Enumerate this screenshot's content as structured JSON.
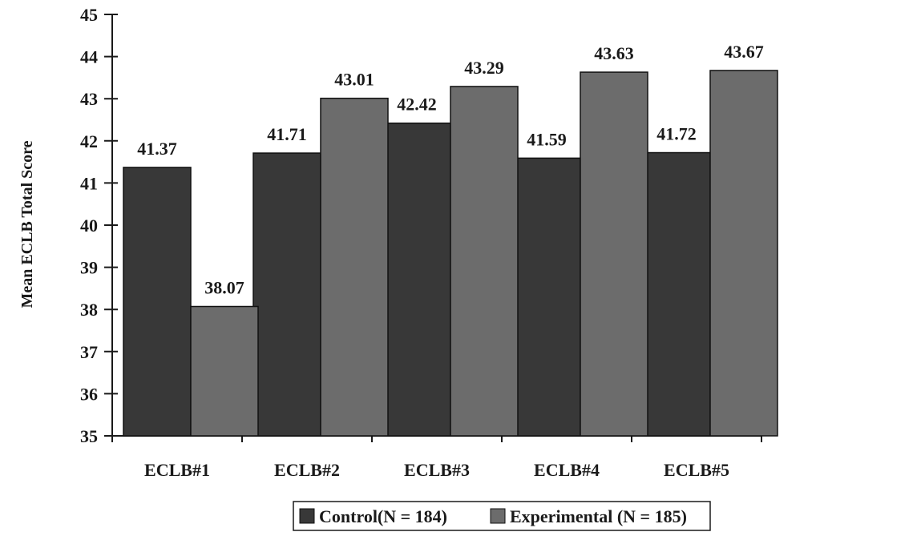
{
  "chart_data": {
    "type": "bar",
    "categories": [
      "ECLB#1",
      "ECLB#2",
      "ECLB#3",
      "ECLB#4",
      "ECLB#5"
    ],
    "series": [
      {
        "name": "Control(N = 184)",
        "values": [
          41.37,
          41.71,
          42.42,
          41.59,
          41.72
        ],
        "color": "#383838"
      },
      {
        "name": "Experimental (N = 185)",
        "values": [
          38.07,
          43.01,
          43.29,
          43.63,
          43.67
        ],
        "color": "#6c6c6c"
      }
    ],
    "data_labels": [
      [
        "41.37",
        "41.71",
        "42.42",
        "41.59",
        "41.72"
      ],
      [
        "38.07",
        "43.01",
        "43.29",
        "43.63",
        "43.67"
      ]
    ],
    "ylabel": "Mean ECLB Total Score",
    "xlabel": "",
    "ylim": [
      35,
      45
    ],
    "yticks": [
      35,
      36,
      37,
      38,
      39,
      40,
      41,
      42,
      43,
      44,
      45
    ],
    "grid": false,
    "legend_position": "bottom-center"
  }
}
